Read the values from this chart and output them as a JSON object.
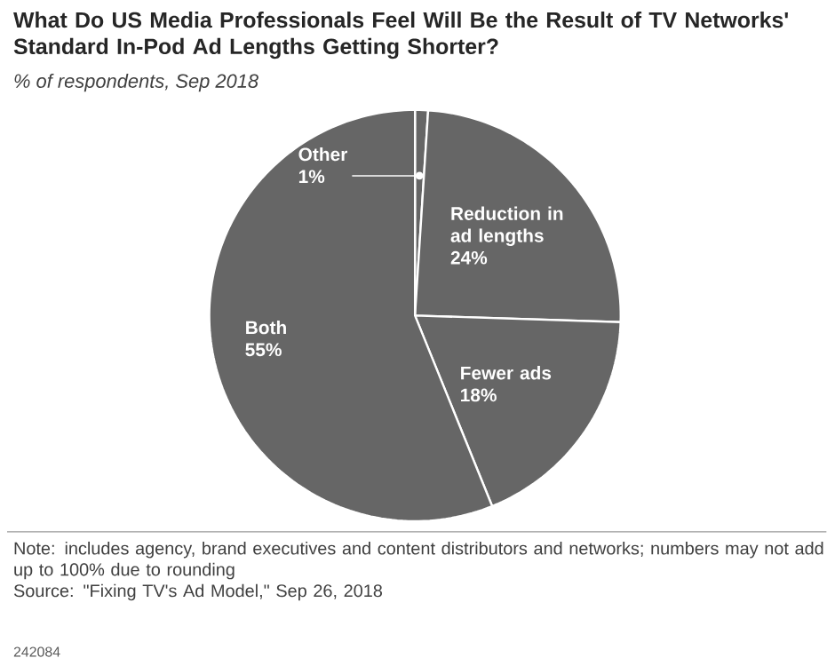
{
  "chart_data": {
    "type": "pie",
    "title": "What Do US Media Professionals Feel Will Be the Result of TV Networks' Standard In-Pod Ad Lengths Getting Shorter?",
    "subtitle": "% of respondents, Sep 2018",
    "categories": [
      "Other",
      "Reduction in ad lengths",
      "Fewer ads",
      "Both"
    ],
    "values": [
      1,
      24,
      18,
      55
    ],
    "value_labels": [
      "1%",
      "24%",
      "18%",
      "55%"
    ],
    "colors": [
      "#666666",
      "#666666",
      "#666666",
      "#666666"
    ],
    "annotations": [
      "Note: includes agency, brand executives and content distributors and networks; numbers may not add up to 100% due to rounding",
      "Source: \"Fixing TV's Ad Model,\" Sep 26, 2018",
      "242084"
    ]
  }
}
